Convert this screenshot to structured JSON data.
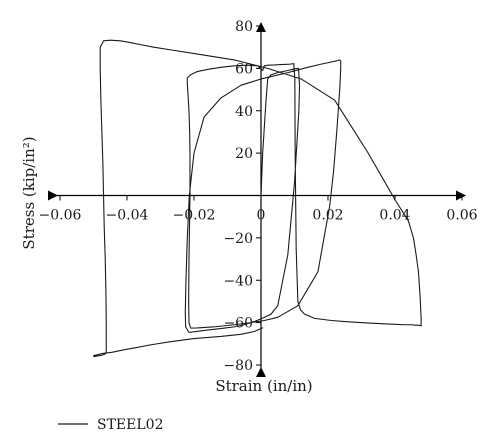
{
  "chart_data": {
    "type": "line",
    "title": "",
    "xlabel": "Strain (in/in)",
    "ylabel": "Stress (kip/in²)",
    "xlim": [
      -0.06,
      0.06
    ],
    "ylim": [
      -80,
      80
    ],
    "x_ticks": [
      -0.06,
      -0.04,
      -0.02,
      0,
      0.02,
      0.04,
      0.06
    ],
    "x_tick_labels": [
      "−0.06",
      "−0.04",
      "−0.02",
      "0",
      "0.02",
      "0.04",
      "0.06"
    ],
    "y_ticks": [
      80,
      60,
      40,
      20,
      0,
      -20,
      -40,
      -60,
      -80
    ],
    "y_tick_labels": [
      "80",
      "60",
      "40",
      "20",
      "",
      "−20",
      "−40",
      "−60",
      "−80"
    ],
    "grid": false,
    "legend_position": "bottom-left",
    "series": [
      {
        "name": "STEEL02",
        "color": "#1a1a1a",
        "x": [
          0,
          0.0005,
          0.0015,
          0.002,
          0.003,
          0.005,
          0.008,
          0.01,
          0.0112,
          0.0115,
          0.0113,
          0.01,
          0.008,
          0.005,
          0.003,
          0.001,
          -0.0005,
          -0.0015,
          -0.003,
          -0.005,
          -0.008,
          -0.012,
          -0.016,
          -0.0195,
          -0.0215,
          -0.0225,
          -0.0226,
          -0.0224,
          -0.022,
          -0.0214,
          -0.02,
          -0.017,
          -0.012,
          -0.006,
          0,
          0.008,
          0.014,
          0.018,
          0.021,
          0.0225,
          0.0234,
          0.0238,
          0.0238,
          0.0235,
          0.0227,
          0.0217,
          0.0205,
          0.017,
          0.011,
          0.005,
          0.001,
          -0.003,
          -0.008,
          -0.014,
          -0.019,
          -0.021,
          -0.0215,
          -0.0216,
          -0.0215,
          -0.0213,
          -0.0212,
          -0.0212,
          -0.0212,
          -0.0213,
          -0.0215,
          -0.0218,
          -0.022,
          -0.022,
          -0.021,
          -0.019,
          -0.016,
          -0.012,
          -0.008,
          -0.004,
          -0.001,
          0.0005,
          0.001,
          0.002,
          0.004,
          0.006,
          0.0085,
          0.0098,
          0.0101,
          0.0102,
          0.0105,
          0.011,
          0.0118,
          0.013,
          0.016,
          0.021,
          0.026,
          0.031,
          0.036,
          0.04,
          0.043,
          0.045,
          0.046,
          0.047,
          0.0478,
          0.0478,
          0.0475,
          0.047,
          0.0463,
          0.0455,
          0.044,
          0.04,
          0.032,
          0.022,
          0.012,
          0.002,
          -0.008,
          -0.018,
          -0.026,
          -0.032,
          -0.036,
          -0.039,
          -0.042,
          -0.045,
          -0.047,
          -0.048,
          -0.048,
          -0.0478,
          -0.0475,
          -0.0472,
          -0.047,
          -0.0468,
          -0.0465,
          -0.0463,
          -0.0462,
          -0.0462,
          -0.0462,
          -0.0462,
          -0.0463,
          -0.0468,
          -0.0478,
          -0.049,
          -0.05,
          -0.0498,
          -0.0493,
          -0.0485,
          -0.047,
          -0.0445,
          -0.0415,
          -0.038,
          -0.033,
          -0.027,
          -0.02,
          -0.012,
          -0.006,
          -0.002,
          0.0005
        ],
        "y": [
          0,
          20,
          45,
          55,
          57,
          58,
          59,
          59.8,
          60,
          52,
          40,
          6,
          -28,
          -52,
          -56,
          -57.5,
          -58.5,
          -59.2,
          -60,
          -61,
          -62,
          -62.8,
          -63.5,
          -64.2,
          -64.6,
          -62,
          -55,
          -40,
          -20,
          0,
          20,
          37,
          46,
          52,
          55,
          58,
          60.5,
          62,
          63,
          63.5,
          64,
          63.5,
          60,
          50,
          32,
          12,
          -5,
          -36,
          -52,
          -57.5,
          -59,
          -60,
          -61,
          -62,
          -62.5,
          -62.6,
          -60,
          -50,
          -30,
          -10,
          0,
          10,
          20,
          30,
          40,
          48,
          53,
          55.5,
          57,
          58.5,
          59.5,
          60.5,
          61.2,
          61.5,
          61.2,
          59,
          61.2,
          61.5,
          61.6,
          61.8,
          62,
          62.2,
          55,
          20,
          -25,
          -50,
          -54,
          -56,
          -58,
          -59,
          -59.6,
          -60.1,
          -60.5,
          -60.8,
          -61,
          -61,
          -61.2,
          -61.2,
          -61.5,
          -58,
          -48,
          -36,
          -28,
          -20,
          -12,
          -2,
          20,
          45,
          55,
          60,
          64,
          66.5,
          68.5,
          70,
          71.2,
          72.2,
          73,
          73.3,
          73,
          70,
          60,
          45,
          30,
          15,
          0,
          -15,
          -30,
          -45,
          -58,
          -70,
          -73,
          -74,
          -74.5,
          -75,
          -75.5,
          -75.8,
          -76,
          -75.5,
          -75.3,
          -75,
          -74.5,
          -74,
          -73,
          -72,
          -70.5,
          -69,
          -67.5,
          -66.5,
          -65.5,
          -64.2,
          -62.5
        ]
      }
    ]
  }
}
